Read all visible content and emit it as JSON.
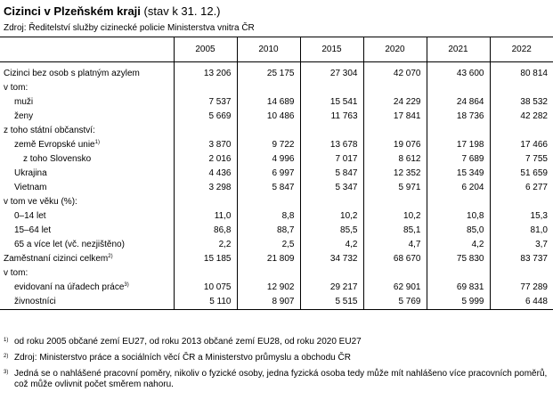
{
  "title": {
    "bold": "Cizinci v Plzeňském kraji",
    "suffix": "(stav k 31. 12.)"
  },
  "source": "Zdroj: Ředitelství služby cizinecké policie Ministerstva vnitra ČR",
  "years": [
    "2005",
    "2010",
    "2015",
    "2020",
    "2021",
    "2022"
  ],
  "rows": [
    {
      "label": "Cizinci bez osob s platným azylem",
      "note": "",
      "indent": 0,
      "values": [
        "13 206",
        "25 175",
        "27 304",
        "42 070",
        "43 600",
        "80 814"
      ]
    },
    {
      "label": "v tom:",
      "note": "",
      "indent": 0,
      "values": [
        "",
        "",
        "",
        "",
        "",
        ""
      ]
    },
    {
      "label": "muži",
      "note": "",
      "indent": 1,
      "values": [
        "7 537",
        "14 689",
        "15 541",
        "24 229",
        "24 864",
        "38 532"
      ]
    },
    {
      "label": "ženy",
      "note": "",
      "indent": 1,
      "values": [
        "5 669",
        "10 486",
        "11 763",
        "17 841",
        "18 736",
        "42 282"
      ]
    },
    {
      "label": "z toho státní občanství:",
      "note": "",
      "indent": 0,
      "values": [
        "",
        "",
        "",
        "",
        "",
        ""
      ]
    },
    {
      "label": "země Evropské unie",
      "note": "1)",
      "indent": 1,
      "values": [
        "3 870",
        "9 722",
        "13 678",
        "19 076",
        "17 198",
        "17 466"
      ]
    },
    {
      "label": "z toho Slovensko",
      "note": "",
      "indent": 2,
      "values": [
        "2 016",
        "4 996",
        "7 017",
        "8 612",
        "7 689",
        "7 755"
      ]
    },
    {
      "label": "Ukrajina",
      "note": "",
      "indent": 1,
      "values": [
        "4 436",
        "6 997",
        "5 847",
        "12 352",
        "15 349",
        "51 659"
      ]
    },
    {
      "label": "Vietnam",
      "note": "",
      "indent": 1,
      "values": [
        "3 298",
        "5 847",
        "5 347",
        "5 971",
        "6 204",
        "6 277"
      ]
    },
    {
      "label": "v tom ve věku (%):",
      "note": "",
      "indent": 0,
      "values": [
        "",
        "",
        "",
        "",
        "",
        ""
      ]
    },
    {
      "label": "0–14 let",
      "note": "",
      "indent": 1,
      "values": [
        "11,0",
        "8,8",
        "10,2",
        "10,2",
        "10,8",
        "15,3"
      ]
    },
    {
      "label": "15–64 let",
      "note": "",
      "indent": 1,
      "values": [
        "86,8",
        "88,7",
        "85,5",
        "85,1",
        "85,0",
        "81,0"
      ]
    },
    {
      "label": "65 a více let (vč. nezjištěno)",
      "note": "",
      "indent": 1,
      "values": [
        "2,2",
        "2,5",
        "4,2",
        "4,7",
        "4,2",
        "3,7"
      ]
    },
    {
      "label": "Zaměstnaní cizinci celkem",
      "note": "2)",
      "indent": 0,
      "values": [
        "15 185",
        "21 809",
        "34 732",
        "68 670",
        "75 830",
        "83 737"
      ]
    },
    {
      "label": "v tom:",
      "note": "",
      "indent": 0,
      "values": [
        "",
        "",
        "",
        "",
        "",
        ""
      ]
    },
    {
      "label": "evidovaní na úřadech práce",
      "note": "3)",
      "indent": 1,
      "values": [
        "10 075",
        "12 902",
        "29 217",
        "62 901",
        "69 831",
        "77 289"
      ]
    },
    {
      "label": "živnostníci",
      "note": "",
      "indent": 1,
      "values": [
        "5 110",
        "8 907",
        "5 515",
        "5 769",
        "5 999",
        "6 448"
      ]
    }
  ],
  "footnotes": [
    {
      "mark": "1)",
      "text": "od roku 2005 občané zemí EU27, od roku 2013 občané zemí EU28, od roku 2020 EU27"
    },
    {
      "mark": "2)",
      "text": "Zdroj: Ministerstvo práce a sociálních věcí ČR a Ministerstvo průmyslu a obchodu ČR"
    },
    {
      "mark": "3)",
      "text": "Jedná se o nahlášené pracovní poměry, nikoliv o fyzické osoby, jedna fyzická osoba tedy může mít nahlášeno více pracovních poměrů, což může ovlivnit počet směrem nahoru."
    }
  ]
}
